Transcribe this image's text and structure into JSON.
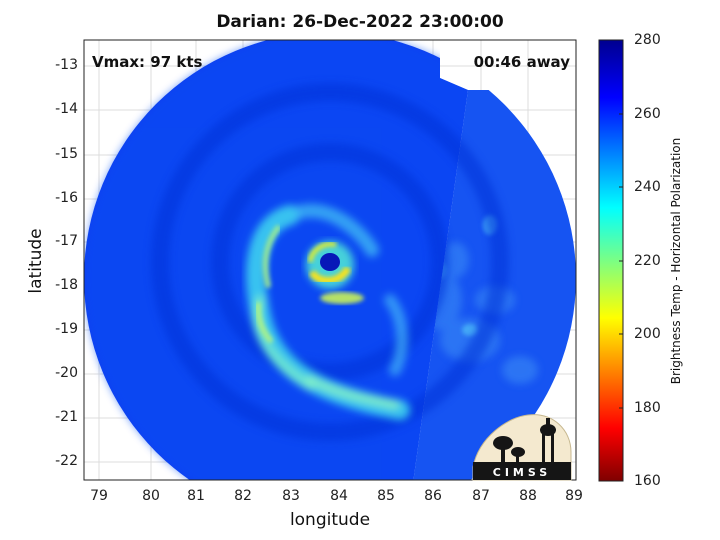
{
  "title": "Darian: 26-Dec-2022 23:00:00",
  "vmax_label": "Vmax: 97 kts",
  "time_away_label": "00:46 away",
  "xlabel": "longitude",
  "ylabel": "latitude",
  "colorbar_label": "Brightness Temp - Horizontal Polarization",
  "x_ticks": [
    "79",
    "80",
    "81",
    "82",
    "83",
    "84",
    "85",
    "86",
    "87",
    "88",
    "89"
  ],
  "y_ticks": [
    "-13",
    "-14",
    "-15",
    "-16",
    "-17",
    "-18",
    "-19",
    "-20",
    "-21",
    "-22"
  ],
  "colorbar_ticks": [
    "280",
    "260",
    "240",
    "220",
    "200",
    "180",
    "160"
  ],
  "logo_text": "CIMSS",
  "colormap": [
    "#7f0000",
    "#ff0000",
    "#ffff00",
    "#00ffff",
    "#0000ff",
    "#00008f"
  ]
}
